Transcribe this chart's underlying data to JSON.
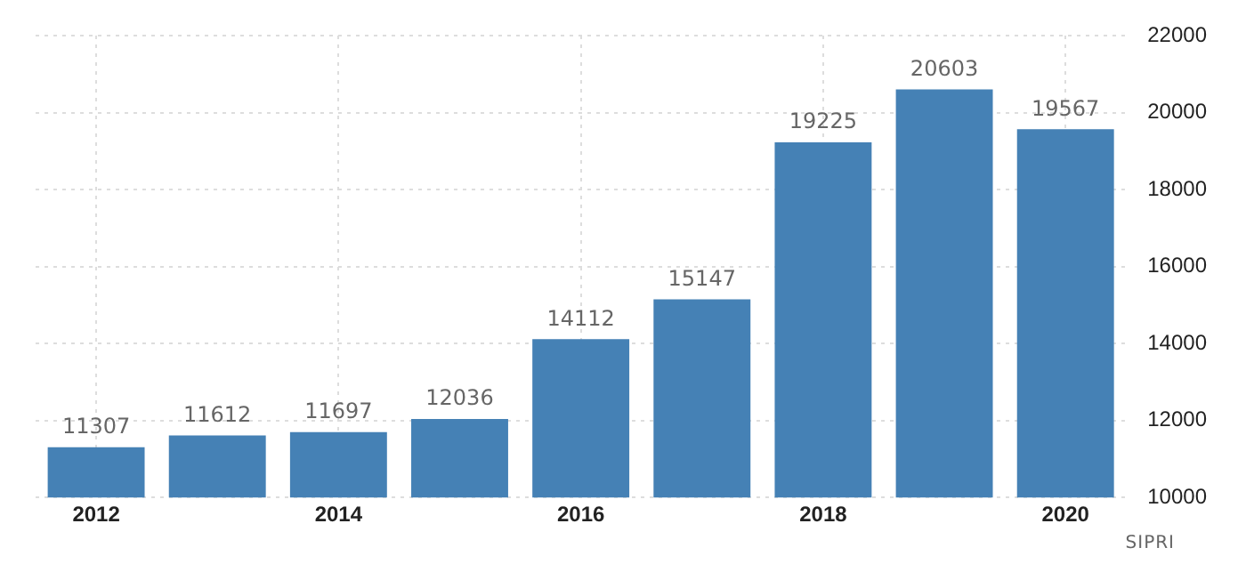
{
  "chart_data": {
    "type": "bar",
    "categories": [
      "2012",
      null,
      "2014",
      null,
      "2016",
      null,
      "2018",
      null,
      "2020"
    ],
    "values": [
      11307,
      11612,
      11697,
      12036,
      14112,
      15147,
      19225,
      20603,
      19567
    ],
    "color": "#4581b5",
    "ylim": [
      10000,
      22000
    ],
    "yticks": [
      10000,
      12000,
      14000,
      16000,
      18000,
      20000,
      22000
    ],
    "grid": true,
    "data_labels": true,
    "legend": false,
    "annotations": [
      "SIPRI"
    ]
  }
}
